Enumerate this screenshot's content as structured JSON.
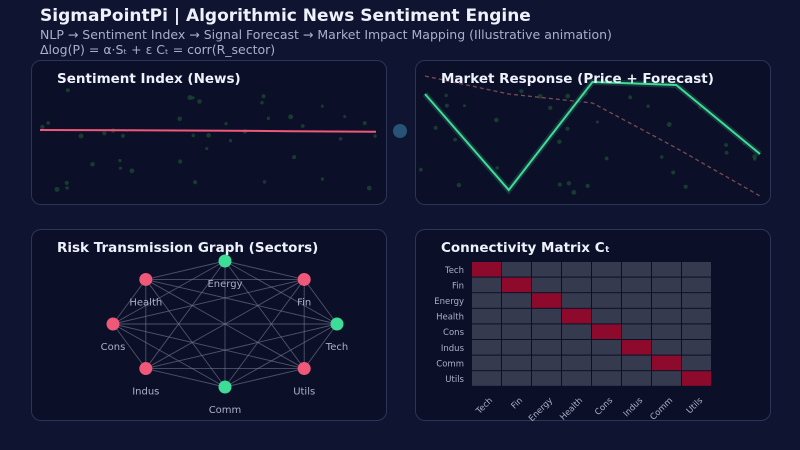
{
  "header": {
    "title": "SigmaPointPi  |  Algorithmic News Sentiment Engine",
    "subtitle": "NLP → Sentiment Index → Signal Forecast → Market Impact Mapping (Illustrative animation)",
    "formula": "Δlog(P) = α·Sₜ + ε   Cₜ = corr(R_sector)"
  },
  "panels": {
    "sentiment": {
      "title": "Sentiment Index (News)"
    },
    "market": {
      "title": "Market Response (Price + Forecast)"
    },
    "graph": {
      "title": "Risk Transmission Graph (Sectors)"
    },
    "matrix": {
      "title": "Connectivity Matrix  Cₜ"
    }
  },
  "colors": {
    "positive": "#3ddc97",
    "negative": "#f0587a",
    "diagonal": "#8e0a2c",
    "offdiag": "#363a4e",
    "forecast": "#7a4a55"
  },
  "sentiment_series": [
    0.0,
    -0.005,
    -0.01,
    -0.02,
    -0.03
  ],
  "market_series": {
    "price": [
      0.6,
      -1.0,
      0.8,
      0.75,
      -0.4
    ],
    "forecast": [
      0.9,
      0.6,
      0.45,
      -0.3,
      -1.1
    ]
  },
  "graph": {
    "nodes": [
      {
        "label": "Energy",
        "state": "positive"
      },
      {
        "label": "Fin",
        "state": "negative"
      },
      {
        "label": "Tech",
        "state": "positive"
      },
      {
        "label": "Utils",
        "state": "negative"
      },
      {
        "label": "Comm",
        "state": "positive"
      },
      {
        "label": "Indus",
        "state": "negative"
      },
      {
        "label": "Cons",
        "state": "negative"
      },
      {
        "label": "Health",
        "state": "negative"
      }
    ]
  },
  "matrix": {
    "labels": [
      "Tech",
      "Fin",
      "Energy",
      "Health",
      "Cons",
      "Indus",
      "Comm",
      "Utils"
    ],
    "diagonal": 1.0,
    "offdiagonal": 0.0
  }
}
